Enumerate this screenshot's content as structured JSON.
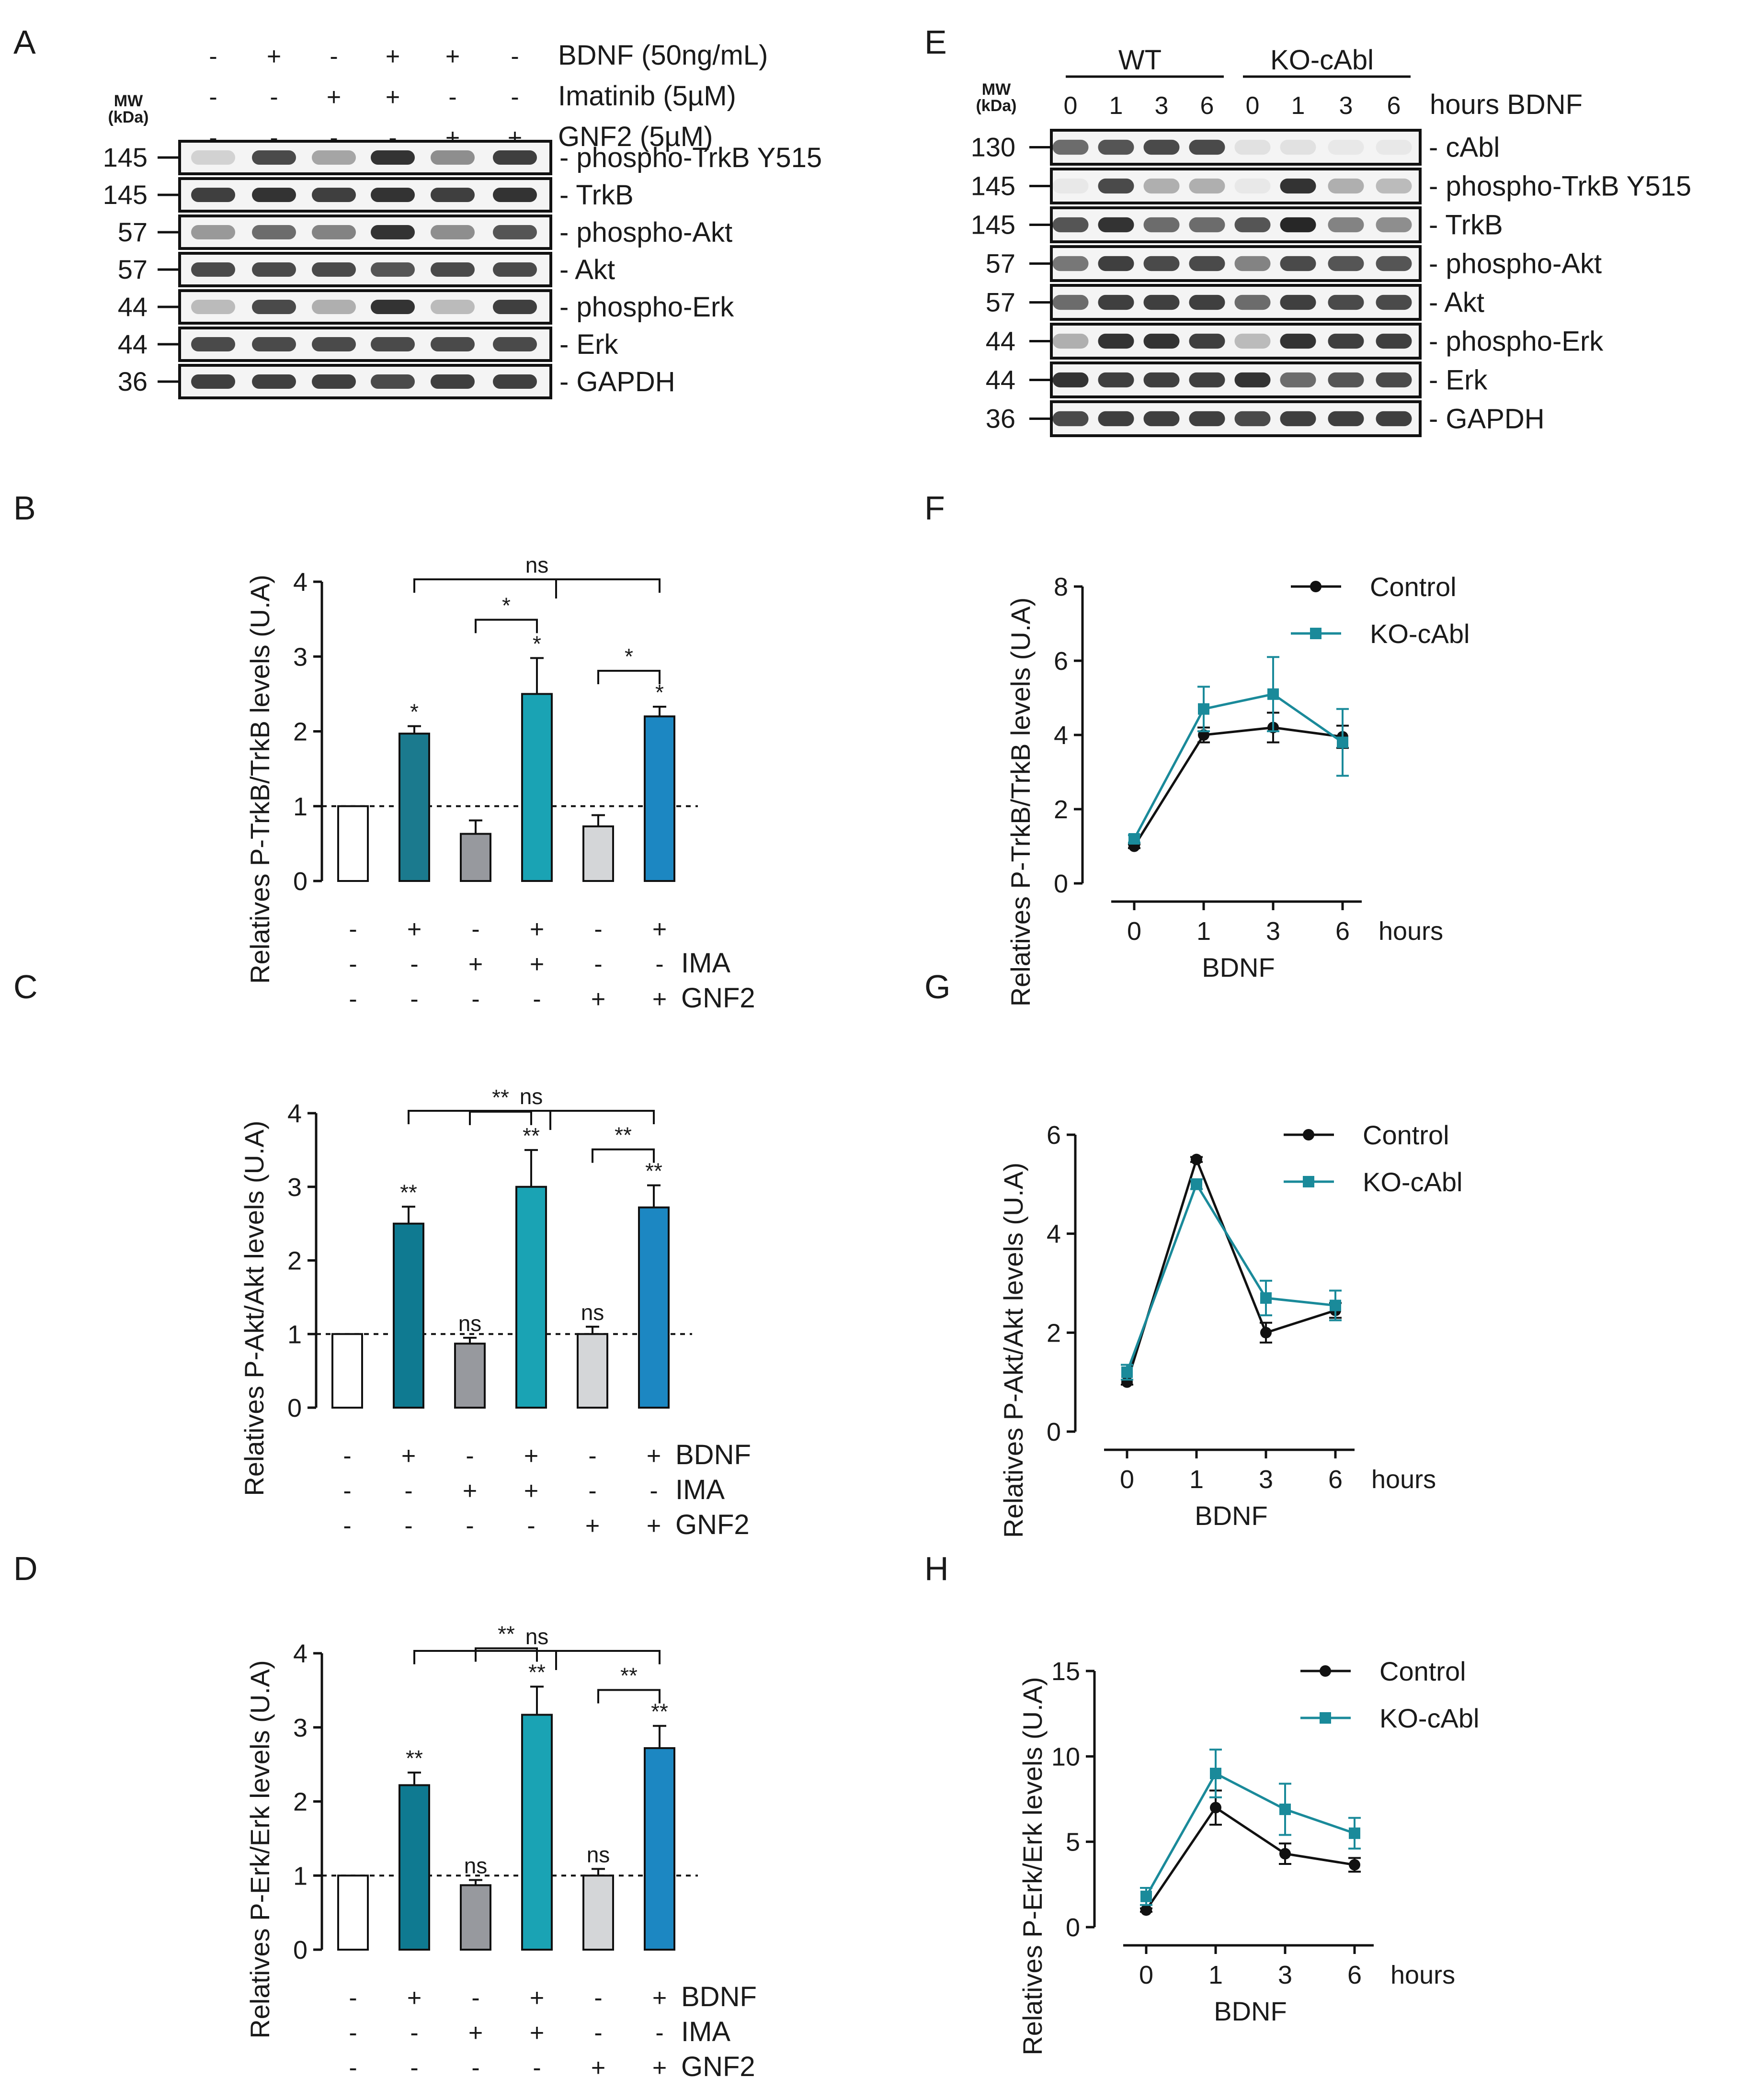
{
  "figure": {
    "panels": [
      "A",
      "B",
      "C",
      "D",
      "E",
      "F",
      "G",
      "H"
    ]
  },
  "blot_a": {
    "mw_header_1": "MW",
    "mw_header_2": "(kDa)",
    "treatments": [
      {
        "label": "BDNF (50ng/mL)",
        "signs": [
          "-",
          "+",
          "-",
          "+",
          "+",
          "-"
        ]
      },
      {
        "label": "Imatinib (5µM)",
        "signs": [
          "-",
          "-",
          "+",
          "+",
          "-",
          "-"
        ]
      },
      {
        "label": "GNF2 (5µM)",
        "signs": [
          "-",
          "-",
          "-",
          "-",
          "+",
          "+"
        ]
      }
    ],
    "rows": [
      {
        "mw": "145",
        "label": "- phospho-TrkB Y515",
        "intensity": [
          0.15,
          0.75,
          0.35,
          0.85,
          0.45,
          0.8
        ]
      },
      {
        "mw": "145",
        "label": "- TrkB",
        "intensity": [
          0.8,
          0.85,
          0.8,
          0.85,
          0.8,
          0.85
        ]
      },
      {
        "mw": "57",
        "label": "- phospho-Akt",
        "intensity": [
          0.4,
          0.6,
          0.5,
          0.85,
          0.45,
          0.7
        ]
      },
      {
        "mw": "57",
        "label": "- Akt",
        "intensity": [
          0.75,
          0.75,
          0.75,
          0.7,
          0.75,
          0.75
        ]
      },
      {
        "mw": "44",
        "label": "- phospho-Erk",
        "intensity": [
          0.25,
          0.75,
          0.3,
          0.85,
          0.25,
          0.8
        ]
      },
      {
        "mw": "44",
        "label": "- Erk",
        "intensity": [
          0.75,
          0.75,
          0.75,
          0.75,
          0.75,
          0.75
        ]
      },
      {
        "mw": "36",
        "label": "- GAPDH",
        "intensity": [
          0.8,
          0.8,
          0.8,
          0.75,
          0.8,
          0.8
        ]
      }
    ]
  },
  "blot_e": {
    "mw_header_1": "MW",
    "mw_header_2": "(kDa)",
    "group_wt": "WT",
    "group_ko": "KO-cAbl",
    "lanes": [
      "0",
      "1",
      "3",
      "6",
      "0",
      "1",
      "3",
      "6"
    ],
    "lane_suffix": "hours BDNF",
    "rows": [
      {
        "mw": "130",
        "label": "- cAbl",
        "intensity": [
          0.6,
          0.7,
          0.75,
          0.75,
          0.08,
          0.08,
          0.05,
          0.05
        ]
      },
      {
        "mw": "145",
        "label": "- phospho-TrkB Y515",
        "intensity": [
          0.05,
          0.75,
          0.3,
          0.3,
          0.05,
          0.85,
          0.3,
          0.25
        ]
      },
      {
        "mw": "145",
        "label": "- TrkB",
        "intensity": [
          0.7,
          0.85,
          0.6,
          0.6,
          0.7,
          0.9,
          0.5,
          0.45
        ]
      },
      {
        "mw": "57",
        "label": "- phospho-Akt",
        "intensity": [
          0.55,
          0.8,
          0.75,
          0.75,
          0.5,
          0.75,
          0.7,
          0.7
        ]
      },
      {
        "mw": "57",
        "label": "- Akt",
        "intensity": [
          0.6,
          0.8,
          0.8,
          0.8,
          0.6,
          0.8,
          0.75,
          0.75
        ]
      },
      {
        "mw": "44",
        "label": "- phospho-Erk",
        "intensity": [
          0.3,
          0.85,
          0.85,
          0.8,
          0.25,
          0.85,
          0.8,
          0.8
        ]
      },
      {
        "mw": "44",
        "label": "- Erk",
        "intensity": [
          0.85,
          0.8,
          0.8,
          0.8,
          0.85,
          0.6,
          0.7,
          0.75
        ]
      },
      {
        "mw": "36",
        "label": "- GAPDH",
        "intensity": [
          0.75,
          0.8,
          0.8,
          0.8,
          0.75,
          0.8,
          0.8,
          0.8
        ]
      }
    ]
  },
  "chart_data": [
    {
      "id": "B",
      "type": "bar",
      "ylabel": "Relatives P-TrkB/TrkB levels  (U.A)",
      "ylim": [
        0,
        4
      ],
      "yticks": [
        "0",
        "1",
        "2",
        "3",
        "4"
      ],
      "values": [
        1.0,
        1.97,
        0.63,
        2.5,
        0.73,
        2.2
      ],
      "errors": [
        0,
        0.1,
        0.18,
        0.48,
        0.15,
        0.13
      ],
      "colors": [
        "#ffffff",
        "#1b7a8e",
        "#97999e",
        "#1aa3b4",
        "#d4d6d8",
        "#1c87c2"
      ],
      "bar_sig": [
        "",
        "*",
        "",
        "*",
        "",
        "*"
      ],
      "brackets": [
        {
          "from": 1,
          "to": 5,
          "label": "ns"
        },
        {
          "from": 2,
          "to": 3,
          "label": "*"
        },
        {
          "from": 4,
          "to": 5,
          "label": "*"
        }
      ],
      "treatment_rows": [
        {
          "label": "",
          "signs": [
            "-",
            "+",
            "-",
            "+",
            "-",
            "+"
          ]
        },
        {
          "label": "IMA",
          "signs": [
            "-",
            "-",
            "+",
            "+",
            "-",
            "-"
          ]
        },
        {
          "label": "GNF2",
          "signs": [
            "-",
            "-",
            "-",
            "-",
            "+",
            "+"
          ]
        }
      ]
    },
    {
      "id": "C",
      "type": "bar",
      "ylabel": "Relatives P-Akt/Akt levels  (U.A)",
      "ylim": [
        0,
        4
      ],
      "yticks": [
        "0",
        "1",
        "2",
        "3",
        "4"
      ],
      "values": [
        1.0,
        2.5,
        0.87,
        3.0,
        1.0,
        2.72
      ],
      "errors": [
        0,
        0.23,
        0.08,
        0.5,
        0.1,
        0.3
      ],
      "colors": [
        "#ffffff",
        "#0f7a91",
        "#97999e",
        "#1aa3b4",
        "#d4d6d8",
        "#1c87c2"
      ],
      "bar_sig": [
        "",
        "**",
        "ns",
        "**",
        "ns",
        "**"
      ],
      "brackets": [
        {
          "from": 1,
          "to": 5,
          "label": "ns"
        },
        {
          "from": 2,
          "to": 3,
          "label": "**"
        },
        {
          "from": 4,
          "to": 5,
          "label": "**"
        }
      ],
      "treatment_rows": [
        {
          "label": "BDNF",
          "signs": [
            "-",
            "+",
            "-",
            "+",
            "-",
            "+"
          ]
        },
        {
          "label": "IMA",
          "signs": [
            "-",
            "-",
            "+",
            "+",
            "-",
            "-"
          ]
        },
        {
          "label": "GNF2",
          "signs": [
            "-",
            "-",
            "-",
            "-",
            "+",
            "+"
          ]
        }
      ]
    },
    {
      "id": "D",
      "type": "bar",
      "ylabel": "Relatives P-Erk/Erk levels  (U.A)",
      "ylim": [
        0,
        4
      ],
      "yticks": [
        "0",
        "1",
        "2",
        "3",
        "4"
      ],
      "values": [
        1.0,
        2.22,
        0.87,
        3.17,
        1.0,
        2.72
      ],
      "errors": [
        0,
        0.17,
        0.07,
        0.38,
        0.09,
        0.3
      ],
      "colors": [
        "#ffffff",
        "#0f7a91",
        "#97999e",
        "#1aa3b4",
        "#d4d6d8",
        "#1c87c2"
      ],
      "bar_sig": [
        "",
        "**",
        "ns",
        "**",
        "ns",
        "**"
      ],
      "brackets": [
        {
          "from": 1,
          "to": 5,
          "label": "ns"
        },
        {
          "from": 2,
          "to": 3,
          "label": "**"
        },
        {
          "from": 4,
          "to": 5,
          "label": "**"
        }
      ],
      "treatment_rows": [
        {
          "label": "BDNF",
          "signs": [
            "-",
            "+",
            "-",
            "+",
            "-",
            "+"
          ]
        },
        {
          "label": "IMA",
          "signs": [
            "-",
            "-",
            "+",
            "+",
            "-",
            "-"
          ]
        },
        {
          "label": "GNF2",
          "signs": [
            "-",
            "-",
            "-",
            "-",
            "+",
            "+"
          ]
        }
      ]
    },
    {
      "id": "F",
      "type": "line",
      "ylabel": "Relatives P-TrkB/TrkB levels  (U.A)",
      "xlabel": "BDNF",
      "x_unit": "hours",
      "x": [
        "0",
        "1",
        "3",
        "6"
      ],
      "ylim": [
        0,
        8
      ],
      "yticks": [
        "0",
        "2",
        "4",
        "6",
        "8"
      ],
      "series": [
        {
          "name": "Control",
          "color": "#111111",
          "marker": "circle",
          "values": [
            1.0,
            4.0,
            4.2,
            3.95
          ],
          "errors": [
            0.05,
            0.2,
            0.4,
            0.3
          ]
        },
        {
          "name": "KO-cAbl",
          "color": "#1a8a9a",
          "marker": "square",
          "values": [
            1.2,
            4.7,
            5.1,
            3.8
          ],
          "errors": [
            0.1,
            0.6,
            1.0,
            0.9
          ]
        }
      ]
    },
    {
      "id": "G",
      "type": "line",
      "ylabel": "Relatives P-Akt/Akt levels  (U.A)",
      "xlabel": "BDNF",
      "x_unit": "hours",
      "x": [
        "0",
        "1",
        "3",
        "6"
      ],
      "ylim": [
        0,
        6
      ],
      "yticks": [
        "0",
        "2",
        "4",
        "6"
      ],
      "series": [
        {
          "name": "Control",
          "color": "#111111",
          "marker": "circle",
          "values": [
            1.0,
            5.5,
            2.0,
            2.45
          ],
          "errors": [
            0.05,
            0.05,
            0.2,
            0.15
          ]
        },
        {
          "name": "KO-cAbl",
          "color": "#1a8a9a",
          "marker": "square",
          "values": [
            1.2,
            5.0,
            2.7,
            2.55
          ],
          "errors": [
            0.15,
            0.1,
            0.35,
            0.3
          ]
        }
      ]
    },
    {
      "id": "H",
      "type": "line",
      "ylabel": "Relatives P-Erk/Erk levels  (U.A)",
      "xlabel": "BDNF",
      "x_unit": "hours",
      "x": [
        "0",
        "1",
        "3",
        "6"
      ],
      "ylim": [
        0,
        15
      ],
      "yticks": [
        "0",
        "5",
        "10",
        "15"
      ],
      "series": [
        {
          "name": "Control",
          "color": "#111111",
          "marker": "circle",
          "values": [
            1.0,
            7.0,
            4.3,
            3.65
          ],
          "errors": [
            0.1,
            1.0,
            0.6,
            0.4
          ]
        },
        {
          "name": "KO-cAbl",
          "color": "#1a8a9a",
          "marker": "square",
          "values": [
            1.8,
            9.0,
            6.9,
            5.5
          ],
          "errors": [
            0.5,
            1.4,
            1.5,
            0.9
          ]
        }
      ]
    }
  ]
}
